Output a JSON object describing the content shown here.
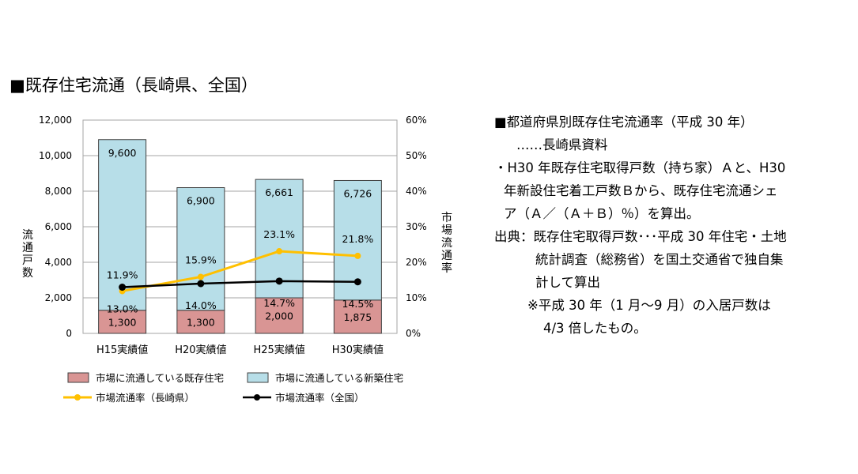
{
  "page": {
    "title": "■既存住宅流通（長崎県、全国）"
  },
  "chart_data": {
    "type": "bar",
    "categories": [
      "H15実績値",
      "H20実績値",
      "H25実績値",
      "H30実績値"
    ],
    "series": [
      {
        "name": "市場に流通している既存住宅",
        "kind": "stacked-bar",
        "color": "#d99594",
        "values": [
          1300,
          1300,
          2000,
          1875
        ],
        "labels": [
          "1,300",
          "1,300",
          "2,000",
          "1,875"
        ]
      },
      {
        "name": "市場に流通している新築住宅",
        "kind": "stacked-bar",
        "color": "#b7dee8",
        "values": [
          9600,
          6900,
          6661,
          6726
        ],
        "labels": [
          "9,600",
          "6,900",
          "6,661",
          "6,726"
        ]
      },
      {
        "name": "市場流通率（長崎県）",
        "kind": "line",
        "axis": "right",
        "color": "#ffc000",
        "values": [
          11.9,
          15.9,
          23.1,
          21.8
        ],
        "labels": [
          "11.9%",
          "15.9%",
          "23.1%",
          "21.8%"
        ]
      },
      {
        "name": "市場流通率（全国）",
        "kind": "line",
        "axis": "right",
        "color": "#000000",
        "values": [
          13.0,
          14.0,
          14.7,
          14.5
        ],
        "labels": [
          "13.0%",
          "14.0%",
          "14.7%",
          "14.5%"
        ]
      }
    ],
    "ylabel": "流通戸数",
    "y2label": "市場流通率",
    "ylim": [
      0,
      12000
    ],
    "y2lim": [
      0,
      60
    ],
    "yticks": [
      "0",
      "2,000",
      "4,000",
      "6,000",
      "8,000",
      "10,000",
      "12,000"
    ],
    "y2ticks": [
      "0%",
      "10%",
      "20%",
      "30%",
      "40%",
      "50%",
      "60%"
    ],
    "grid": true,
    "legend": "bottom"
  },
  "note": {
    "heading": "■都道府県別既存住宅流通率（平成 30 年）",
    "source_label": "……長崎県資料",
    "bullet_lines": [
      "・H30 年既存住宅取得戸数（持ち家）Ａと、H30",
      "年新設住宅着工戸数Ｂから、既存住宅流通シェ",
      "ア（Ａ／（Ａ＋Ｂ）％）を算出。"
    ],
    "source_lines": [
      "出典：既存住宅取得戸数･･･平成 30 年住宅・土地",
      "統計調査（総務省）を国土交通省で独自集",
      "計して算出",
      "※平成 30 年（1 月～9 月）の入居戸数は",
      "4/3 倍したもの。"
    ]
  }
}
